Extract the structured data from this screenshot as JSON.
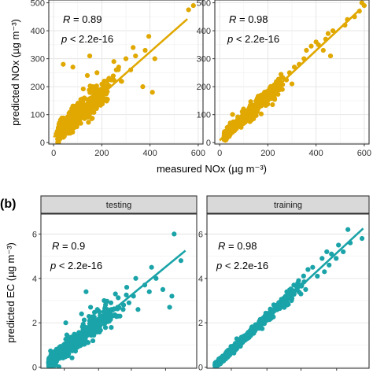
{
  "figure": {
    "panel_b_tag": "(b)"
  },
  "chart_data": [
    {
      "type": "scatter",
      "panel": "top-left",
      "xlabel": "measured NOx (µg m⁻³)",
      "ylabel": "predicted NOx (µg m⁻³)",
      "xlim": [
        -20,
        620
      ],
      "ylim": [
        -5,
        510
      ],
      "xticks": [
        0,
        200,
        400,
        600
      ],
      "yticks": [
        0,
        100,
        200,
        300,
        400,
        500
      ],
      "color": "#E0A800",
      "annotations": {
        "r_symbol": "R",
        "r_text": " = 0.89",
        "p_symbol": "p",
        "p_text": " < 2.2e-16"
      },
      "fit_line": {
        "x": [
          0,
          555
        ],
        "y": [
          20,
          442
        ]
      },
      "outliers": [
        [
          580,
          490
        ],
        [
          560,
          475
        ],
        [
          395,
          380
        ],
        [
          330,
          340
        ],
        [
          380,
          330
        ],
        [
          250,
          290
        ],
        [
          260,
          260
        ],
        [
          300,
          300
        ],
        [
          150,
          310
        ],
        [
          80,
          270
        ],
        [
          40,
          280
        ],
        [
          370,
          200
        ],
        [
          410,
          180
        ],
        [
          180,
          250
        ],
        [
          120,
          150
        ],
        [
          230,
          230
        ],
        [
          280,
          220
        ],
        [
          320,
          260
        ],
        [
          200,
          190
        ],
        [
          420,
          300
        ],
        [
          340,
          310
        ],
        [
          270,
          270
        ],
        [
          210,
          220
        ],
        [
          160,
          200
        ],
        [
          140,
          240
        ]
      ]
    },
    {
      "type": "scatter",
      "panel": "top-right",
      "xlabel": "",
      "ylabel": "",
      "xlim": [
        -20,
        620
      ],
      "ylim": [
        -5,
        510
      ],
      "xticks": [
        0,
        200,
        400,
        600
      ],
      "yticks": [
        0,
        100,
        200,
        300,
        400,
        500
      ],
      "color": "#E0A800",
      "annotations": {
        "r_symbol": "R",
        "r_text": " = 0.98",
        "p_symbol": "p",
        "p_text": " < 2.2e-16"
      },
      "fit_line": {
        "x": [
          0,
          585
        ],
        "y": [
          8,
          478
        ]
      },
      "outliers": [
        [
          590,
          500
        ],
        [
          580,
          470
        ],
        [
          560,
          450
        ],
        [
          470,
          400
        ],
        [
          450,
          390
        ],
        [
          460,
          310
        ],
        [
          430,
          330
        ],
        [
          380,
          345
        ],
        [
          350,
          300
        ],
        [
          310,
          270
        ],
        [
          290,
          250
        ],
        [
          400,
          360
        ],
        [
          520,
          420
        ],
        [
          530,
          440
        ],
        [
          410,
          350
        ],
        [
          440,
          370
        ],
        [
          300,
          210
        ],
        [
          260,
          190
        ],
        [
          360,
          330
        ],
        [
          330,
          280
        ],
        [
          600,
          490
        ],
        [
          250,
          220
        ]
      ]
    },
    {
      "type": "scatter",
      "panel": "bottom-left",
      "strip": "testing",
      "xlabel": "",
      "ylabel": "predicted EC (µg m⁻³)",
      "xlim": [
        -0.3,
        6.6
      ],
      "ylim": [
        -0.05,
        6.9
      ],
      "yticks": [
        0,
        2,
        4,
        6
      ],
      "color": "#1AA3A8",
      "annotations": {
        "r_symbol": "R",
        "r_text": " = 0.9",
        "p_symbol": "p",
        "p_text": " < 2.2e-16"
      },
      "fit_line": {
        "x": [
          0,
          6.1
        ],
        "y": [
          0.15,
          5.25
        ]
      },
      "outliers": [
        [
          5.9,
          4.8
        ],
        [
          5.6,
          6.0
        ],
        [
          5.5,
          3.2
        ],
        [
          5.1,
          3.5
        ],
        [
          5.4,
          2.7
        ],
        [
          4.6,
          4.5
        ],
        [
          4.3,
          3.7
        ],
        [
          3.8,
          3.2
        ],
        [
          3.5,
          3.6
        ],
        [
          3.0,
          3.3
        ],
        [
          3.2,
          2.3
        ],
        [
          2.8,
          2.9
        ],
        [
          4.0,
          2.6
        ],
        [
          1.7,
          3.4
        ],
        [
          2.5,
          3.0
        ],
        [
          3.9,
          4.0
        ],
        [
          1.9,
          2.7
        ],
        [
          4.8,
          4.0
        ],
        [
          2.2,
          2.6
        ],
        [
          3.6,
          2.9
        ],
        [
          4.5,
          3.4
        ],
        [
          2.6,
          2.4
        ],
        [
          3.1,
          2.7
        ],
        [
          1.5,
          2.4
        ],
        [
          0.8,
          2.0
        ]
      ]
    },
    {
      "type": "scatter",
      "panel": "bottom-right",
      "strip": "training",
      "xlabel": "",
      "ylabel": "",
      "xlim": [
        -0.3,
        6.6
      ],
      "ylim": [
        -0.05,
        6.9
      ],
      "yticks": [
        0,
        2,
        4,
        6
      ],
      "color": "#1AA3A8",
      "annotations": {
        "r_symbol": "R",
        "r_text": " = 0.98",
        "p_symbol": "p",
        "p_text": " < 2.2e-16"
      },
      "fit_line": {
        "x": [
          0,
          6.35
        ],
        "y": [
          0.03,
          6.25
        ]
      },
      "outliers": [
        [
          6.3,
          5.8
        ],
        [
          5.7,
          6.2
        ],
        [
          5.5,
          5.2
        ],
        [
          5.3,
          5.5
        ],
        [
          4.9,
          4.6
        ],
        [
          5.0,
          5.1
        ],
        [
          4.6,
          4.9
        ],
        [
          4.4,
          4.1
        ],
        [
          4.2,
          4.5
        ],
        [
          3.9,
          3.5
        ],
        [
          3.6,
          3.9
        ],
        [
          3.3,
          3.0
        ],
        [
          4.0,
          4.4
        ],
        [
          3.7,
          3.3
        ],
        [
          5.8,
          5.6
        ],
        [
          4.7,
          4.3
        ],
        [
          3.4,
          3.7
        ],
        [
          3.1,
          3.4
        ],
        [
          4.8,
          5.2
        ],
        [
          5.2,
          4.9
        ]
      ]
    }
  ]
}
